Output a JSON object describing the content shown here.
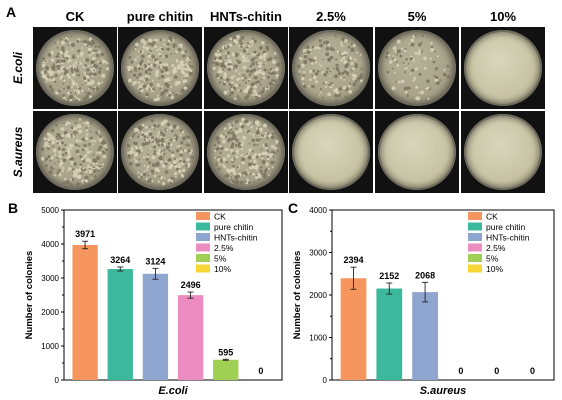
{
  "panel_a": {
    "label": "A",
    "columns": [
      "CK",
      "pure chitin",
      "HNTs-chitin",
      "2.5%",
      "5%",
      "10%"
    ],
    "rows": [
      "E.coli",
      "S.aureus"
    ],
    "plates": [
      [
        "dense",
        "dense",
        "dense",
        "medium",
        "sparse",
        "clear"
      ],
      [
        "dense",
        "dense",
        "dense",
        "clear",
        "clear",
        "clear"
      ]
    ]
  },
  "chart_data": [
    {
      "type": "bar",
      "panel_label": "B",
      "categories": [
        "CK",
        "pure chitin",
        "HNTs-chitin",
        "2.5%",
        "5%",
        "10%"
      ],
      "values": [
        3971,
        3264,
        3124,
        2496,
        595,
        0
      ],
      "errors": [
        110,
        60,
        160,
        90,
        15,
        0
      ],
      "value_labels": [
        "3971",
        "3264",
        "3124",
        "2496",
        "595",
        "0"
      ],
      "colors": [
        "#f7955e",
        "#3cb99c",
        "#8ea5cf",
        "#ec8cc0",
        "#9fcf53",
        "#f6d535"
      ],
      "xlabel": "E.coli",
      "ylabel": "Number of colonies",
      "ylim": [
        0,
        5000
      ],
      "yticks": [
        0,
        1000,
        2000,
        3000,
        4000,
        5000
      ],
      "legend": [
        "CK",
        "pure chitin",
        "HNTs-chitin",
        "2.5%",
        "5%",
        "10%"
      ],
      "legend_position": "top-right",
      "grid": false
    },
    {
      "type": "bar",
      "panel_label": "C",
      "categories": [
        "CK",
        "pure chitin",
        "HNTs-chitin",
        "2.5%",
        "5%",
        "10%"
      ],
      "values": [
        2394,
        2152,
        2068,
        0,
        0,
        0
      ],
      "errors": [
        260,
        130,
        230,
        0,
        0,
        0
      ],
      "value_labels": [
        "2394",
        "2152",
        "2068",
        "0",
        "0",
        "0"
      ],
      "colors": [
        "#f7955e",
        "#3cb99c",
        "#8ea5cf",
        "#ec8cc0",
        "#9fcf53",
        "#f6d535"
      ],
      "xlabel": "S.aureus",
      "ylabel": "Number of colonies",
      "ylim": [
        0,
        4000
      ],
      "yticks": [
        0,
        1000,
        2000,
        3000,
        4000
      ],
      "legend": [
        "CK",
        "pure chitin",
        "HNTs-chitin",
        "2.5%",
        "5%",
        "10%"
      ],
      "legend_position": "top-right",
      "grid": false
    }
  ]
}
